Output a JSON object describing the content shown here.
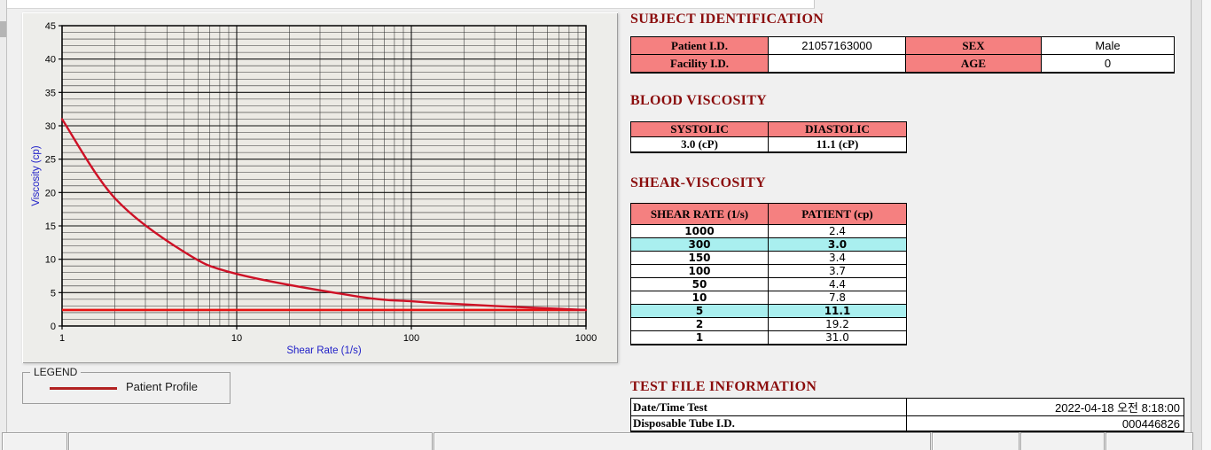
{
  "colors": {
    "window_bg": "#f0f0f0",
    "section_title": "#8b0d0d",
    "table_header_bg": "#f58080",
    "table_header_text": "#7c0b0b",
    "row_highlight_bg": "#a9efef",
    "curve": "#ce1126",
    "reference_line": "#e81212",
    "legend_line": "#b22222",
    "axis_title": "#2121c8"
  },
  "chart_data": {
    "type": "line",
    "title": "",
    "xlabel": "Shear Rate (1/s)",
    "ylabel": "Viscosity (cp)",
    "x_scale": "log",
    "xlim": [
      1,
      1000
    ],
    "ylim": [
      0,
      45
    ],
    "x_ticks": [
      1,
      10,
      100,
      1000
    ],
    "y_tick_step_major": 5,
    "y_tick_step_minor": 1,
    "grid": true,
    "series": [
      {
        "name": "Patient Profile",
        "color": "#ce1126",
        "x": [
          1,
          2,
          5,
          10,
          50,
          100,
          150,
          300,
          1000
        ],
        "y": [
          31.0,
          19.2,
          11.1,
          7.8,
          4.4,
          3.7,
          3.4,
          3.0,
          2.4
        ]
      }
    ],
    "reference_lines": [
      {
        "y": 2.4,
        "color": "#e81212"
      }
    ],
    "legend_position": "below-left"
  },
  "legend": {
    "title": "LEGEND",
    "entries": [
      {
        "label": "Patient Profile",
        "color": "#b22222"
      }
    ]
  },
  "subject_identification": {
    "title": "SUBJECT IDENTIFICATION",
    "fields": [
      {
        "label": "Patient I.D.",
        "value": "21057163000"
      },
      {
        "label": "SEX",
        "value": "Male"
      },
      {
        "label": "Facility I.D.",
        "value": ""
      },
      {
        "label": "AGE",
        "value": "0"
      }
    ]
  },
  "blood_viscosity": {
    "title": "BLOOD VISCOSITY",
    "columns": [
      "SYSTOLIC",
      "DIASTOLIC"
    ],
    "values": [
      "3.0 (cP)",
      "11.1 (cP)"
    ]
  },
  "shear_viscosity": {
    "title": "SHEAR-VISCOSITY",
    "columns": [
      "SHEAR RATE (1/s)",
      "PATIENT (cp)"
    ],
    "rows": [
      {
        "shear_rate": "1000",
        "patient": "2.4",
        "highlight": false
      },
      {
        "shear_rate": "300",
        "patient": "3.0",
        "highlight": true
      },
      {
        "shear_rate": "150",
        "patient": "3.4",
        "highlight": false
      },
      {
        "shear_rate": "100",
        "patient": "3.7",
        "highlight": false
      },
      {
        "shear_rate": "50",
        "patient": "4.4",
        "highlight": false
      },
      {
        "shear_rate": "10",
        "patient": "7.8",
        "highlight": false
      },
      {
        "shear_rate": "5",
        "patient": "11.1",
        "highlight": true
      },
      {
        "shear_rate": "2",
        "patient": "19.2",
        "highlight": false
      },
      {
        "shear_rate": "1",
        "patient": "31.0",
        "highlight": false
      }
    ]
  },
  "test_file_information": {
    "title": "TEST FILE INFORMATION",
    "rows": [
      {
        "label": "Date/Time Test",
        "value": "2022-04-18  오전 8:18:00"
      },
      {
        "label": "Disposable Tube I.D.",
        "value": "000446826"
      }
    ]
  }
}
